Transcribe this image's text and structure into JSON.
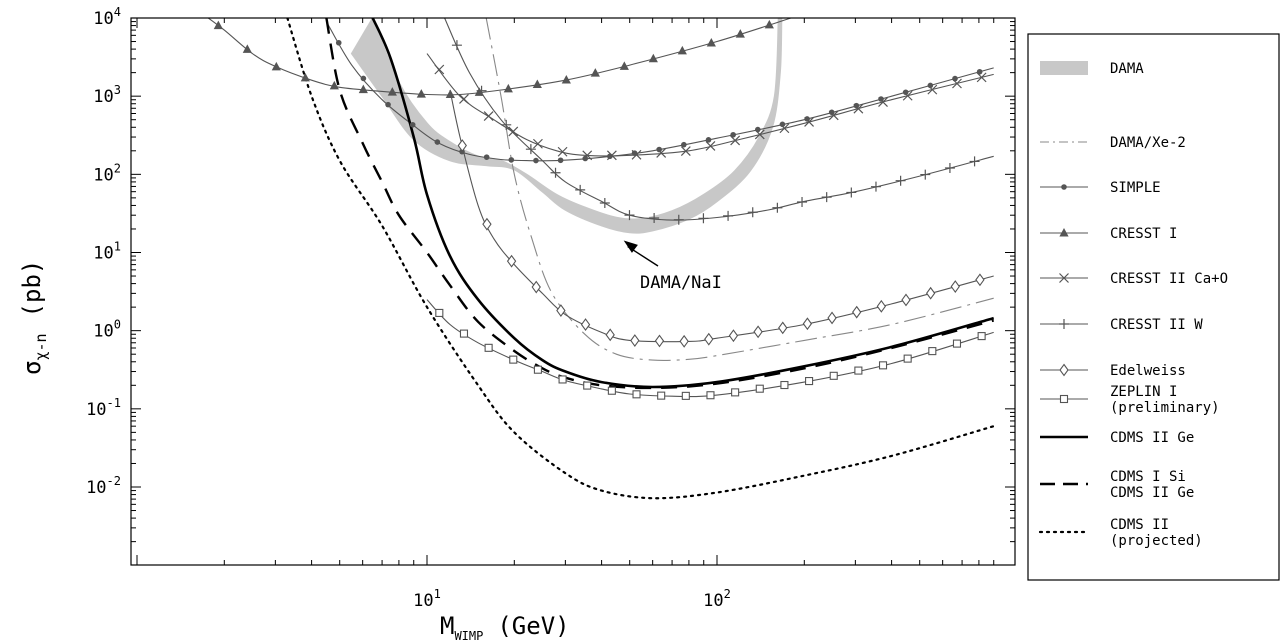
{
  "chart_data": {
    "type": "line",
    "xlabel": "M",
    "xlabel_sub": "WIMP",
    "xlabel_unit": "(GeV)",
    "ylabel": "σ",
    "ylabel_sub": "χ-n",
    "ylabel_unit": "(pb)",
    "x_scale": "log",
    "y_scale": "log",
    "xlim": [
      1,
      900
    ],
    "ylim": [
      0.0005,
      10000
    ],
    "x_ticks": [
      {
        "value": 10,
        "base": "10",
        "exp": "1"
      },
      {
        "value": 100,
        "base": "10",
        "exp": "2"
      }
    ],
    "y_ticks": [
      {
        "value": 0.01,
        "base": "10",
        "exp": "-2"
      },
      {
        "value": 0.1,
        "base": "10",
        "exp": "-1"
      },
      {
        "value": 1,
        "base": "10",
        "exp": "0"
      },
      {
        "value": 10,
        "base": "10",
        "exp": "1"
      },
      {
        "value": 100,
        "base": "10",
        "exp": "2"
      },
      {
        "value": 1000,
        "base": "10",
        "exp": "3"
      },
      {
        "value": 10000,
        "base": "10",
        "exp": "4"
      }
    ],
    "grid": false,
    "legend_position": "right, outside plot",
    "annotation": {
      "text": "DAMA/NaI",
      "x": 50,
      "y": 17
    },
    "series": [
      {
        "name": "DAMA",
        "style": "band",
        "color": "#c8c8c8",
        "lower": [
          [
            5.5,
            3500
          ],
          [
            7,
            1000
          ],
          [
            9,
            280
          ],
          [
            12,
            150
          ],
          [
            16,
            130
          ],
          [
            20,
            115
          ],
          [
            25,
            60
          ],
          [
            30,
            35
          ],
          [
            40,
            22
          ],
          [
            50,
            18
          ],
          [
            60,
            19
          ],
          [
            80,
            27
          ],
          [
            100,
            45
          ],
          [
            130,
            110
          ],
          [
            155,
            400
          ],
          [
            165,
            2000
          ],
          [
            167,
            10000
          ]
        ],
        "upper": [
          [
            6.5,
            10000
          ],
          [
            8,
            1500
          ],
          [
            10,
            450
          ],
          [
            12,
            260
          ],
          [
            15,
            170
          ],
          [
            18,
            150
          ],
          [
            22,
            100
          ],
          [
            28,
            55
          ],
          [
            35,
            38
          ],
          [
            45,
            28
          ],
          [
            55,
            27
          ],
          [
            70,
            34
          ],
          [
            90,
            55
          ],
          [
            115,
            110
          ],
          [
            140,
            300
          ],
          [
            158,
            1000
          ],
          [
            163,
            10000
          ]
        ]
      },
      {
        "name": "DAMA/Xe-2",
        "style": "dashdot",
        "color": "#888888",
        "points": [
          [
            16,
            10000
          ],
          [
            18,
            1000
          ],
          [
            20,
            100
          ],
          [
            23,
            15
          ],
          [
            27,
            3
          ],
          [
            35,
            0.9
          ],
          [
            45,
            0.5
          ],
          [
            60,
            0.42
          ],
          [
            80,
            0.43
          ],
          [
            100,
            0.48
          ],
          [
            200,
            0.75
          ],
          [
            400,
            1.2
          ],
          [
            900,
            2.6
          ]
        ]
      },
      {
        "name": "SIMPLE",
        "style": "line-marker",
        "marker": "dot",
        "color": "#555555",
        "points": [
          [
            4.5,
            9000
          ],
          [
            5.5,
            2500
          ],
          [
            7,
            900
          ],
          [
            9,
            420
          ],
          [
            11,
            250
          ],
          [
            14,
            180
          ],
          [
            18,
            155
          ],
          [
            22,
            150
          ],
          [
            28,
            150
          ],
          [
            40,
            165
          ],
          [
            60,
            200
          ],
          [
            100,
            290
          ],
          [
            200,
            500
          ],
          [
            400,
            1000
          ],
          [
            900,
            2300
          ]
        ]
      },
      {
        "name": "CRESST I",
        "style": "line-marker",
        "marker": "triangle",
        "color": "#555555",
        "points": [
          [
            1.7,
            11000
          ],
          [
            2,
            7000
          ],
          [
            2.5,
            3500
          ],
          [
            3,
            2400
          ],
          [
            4,
            1600
          ],
          [
            5,
            1300
          ],
          [
            7,
            1150
          ],
          [
            10,
            1050
          ],
          [
            13,
            1050
          ],
          [
            18,
            1200
          ],
          [
            30,
            1600
          ],
          [
            50,
            2500
          ],
          [
            100,
            5000
          ],
          [
            180,
            10000
          ]
        ]
      },
      {
        "name": "CRESST II Ca+O",
        "style": "line-marker",
        "marker": "cross",
        "color": "#555555",
        "points": [
          [
            10,
            3500
          ],
          [
            13,
            1000
          ],
          [
            17,
            500
          ],
          [
            22,
            280
          ],
          [
            28,
            200
          ],
          [
            35,
            175
          ],
          [
            50,
            175
          ],
          [
            80,
            200
          ],
          [
            120,
            280
          ],
          [
            200,
            450
          ],
          [
            400,
            900
          ],
          [
            900,
            1900
          ]
        ]
      },
      {
        "name": "CRESST II W",
        "style": "line-marker",
        "marker": "plus",
        "color": "#555555",
        "points": [
          [
            11.5,
            10000
          ],
          [
            14,
            2000
          ],
          [
            18,
            500
          ],
          [
            25,
            150
          ],
          [
            30,
            80
          ],
          [
            40,
            45
          ],
          [
            50,
            30
          ],
          [
            70,
            26
          ],
          [
            100,
            28
          ],
          [
            150,
            35
          ],
          [
            200,
            45
          ],
          [
            300,
            60
          ],
          [
            500,
            95
          ],
          [
            900,
            170
          ]
        ]
      },
      {
        "name": "Edelweiss",
        "style": "line-marker",
        "marker": "diamond",
        "color": "#555555",
        "points": [
          [
            12,
            1200
          ],
          [
            13,
            300
          ],
          [
            15,
            40
          ],
          [
            17,
            15
          ],
          [
            20,
            7
          ],
          [
            25,
            3
          ],
          [
            30,
            1.6
          ],
          [
            40,
            0.95
          ],
          [
            50,
            0.75
          ],
          [
            80,
            0.73
          ],
          [
            100,
            0.8
          ],
          [
            200,
            1.2
          ],
          [
            400,
            2.2
          ],
          [
            900,
            5
          ]
        ]
      },
      {
        "name": "ZEPLIN I\n(preliminary)",
        "style": "line-marker",
        "marker": "square",
        "color": "#555555",
        "points": [
          [
            10,
            2.5
          ],
          [
            12,
            1.2
          ],
          [
            15,
            0.7
          ],
          [
            20,
            0.42
          ],
          [
            25,
            0.3
          ],
          [
            30,
            0.23
          ],
          [
            40,
            0.18
          ],
          [
            50,
            0.155
          ],
          [
            70,
            0.145
          ],
          [
            100,
            0.15
          ],
          [
            200,
            0.22
          ],
          [
            400,
            0.38
          ],
          [
            900,
            0.95
          ]
        ]
      },
      {
        "name": "CDMS II Ge",
        "style": "solid",
        "color": "#000000",
        "width": 2.6,
        "points": [
          [
            6.5,
            10000
          ],
          [
            7.5,
            3000
          ],
          [
            9,
            300
          ],
          [
            10,
            55
          ],
          [
            12,
            9
          ],
          [
            15,
            2.5
          ],
          [
            20,
            0.8
          ],
          [
            25,
            0.42
          ],
          [
            30,
            0.3
          ],
          [
            40,
            0.22
          ],
          [
            60,
            0.19
          ],
          [
            100,
            0.22
          ],
          [
            200,
            0.35
          ],
          [
            400,
            0.62
          ],
          [
            900,
            1.45
          ]
        ]
      },
      {
        "name": "CDMS I Si\nCDMS II Ge",
        "style": "dashed",
        "color": "#000000",
        "width": 2.4,
        "points": [
          [
            4.5,
            10000
          ],
          [
            5,
            1200
          ],
          [
            6,
            250
          ],
          [
            7,
            80
          ],
          [
            8,
            30
          ],
          [
            10,
            10
          ],
          [
            12,
            3.8
          ],
          [
            15,
            1.3
          ],
          [
            20,
            0.55
          ],
          [
            25,
            0.33
          ],
          [
            30,
            0.25
          ],
          [
            40,
            0.2
          ],
          [
            60,
            0.185
          ],
          [
            100,
            0.21
          ],
          [
            200,
            0.33
          ],
          [
            400,
            0.6
          ],
          [
            900,
            1.35
          ]
        ]
      },
      {
        "name": "CDMS II\n(projected)",
        "style": "dotted",
        "color": "#000000",
        "width": 2.2,
        "points": [
          [
            3.3,
            10000
          ],
          [
            4,
            1000
          ],
          [
            5,
            150
          ],
          [
            7,
            22
          ],
          [
            10,
            2
          ],
          [
            15,
            0.2
          ],
          [
            20,
            0.05
          ],
          [
            30,
            0.015
          ],
          [
            40,
            0.009
          ],
          [
            60,
            0.0072
          ],
          [
            100,
            0.0085
          ],
          [
            200,
            0.014
          ],
          [
            400,
            0.025
          ],
          [
            900,
            0.06
          ]
        ]
      }
    ]
  }
}
